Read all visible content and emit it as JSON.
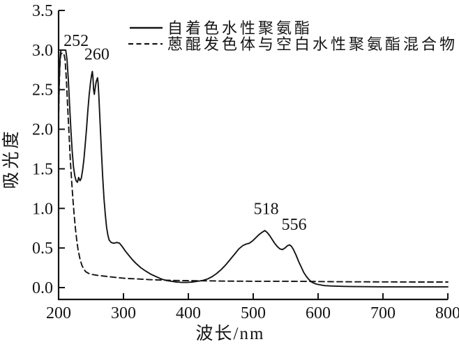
{
  "figure": {
    "background": "#ffffff",
    "ink": "#141414"
  },
  "x_axis": {
    "title": "波长/nm",
    "tick_labels": [
      "200",
      "300",
      "400",
      "500",
      "600",
      "700",
      "800"
    ],
    "tick_values": [
      200,
      300,
      400,
      500,
      600,
      700,
      800
    ],
    "min": 200,
    "max": 800
  },
  "y_axis": {
    "title": "吸光度",
    "tick_labels": [
      "0.0",
      "0.5",
      "1.0",
      "1.5",
      "2.0",
      "2.5",
      "3.0",
      "3.5"
    ],
    "tick_values": [
      0,
      0.5,
      1,
      1.5,
      2,
      2.5,
      3,
      3.5
    ],
    "min": 0.0,
    "max": 3.5
  },
  "legend": {
    "items": [
      {
        "label": "自着色水性聚氨酯",
        "line_style": "solid"
      },
      {
        "label": "蒽醌发色体与空白水性聚氨酯混合物",
        "line_style": "dashed"
      }
    ]
  },
  "annotations": [
    {
      "text": "252",
      "peak_nm": 252,
      "peak_abs": 2.73,
      "label_nm": 227,
      "label_abs": 3.12
    },
    {
      "text": "260",
      "peak_nm": 260,
      "peak_abs": 2.65,
      "label_nm": 259,
      "label_abs": 2.95
    },
    {
      "text": "518",
      "peak_nm": 518,
      "peak_abs": 0.72,
      "label_nm": 520,
      "label_abs": 1.0
    },
    {
      "text": "556",
      "peak_nm": 556,
      "peak_abs": 0.54,
      "label_nm": 563,
      "label_abs": 0.8
    }
  ],
  "chart_data": {
    "type": "line",
    "title": "",
    "xlabel": "波长/nm",
    "ylabel": "吸光度",
    "xlim": [
      200,
      800
    ],
    "ylim": [
      0,
      3.5
    ],
    "grid": false,
    "legend_position": "top-center",
    "peaks_nm": [
      252,
      260,
      518,
      556
    ],
    "series": [
      {
        "name": "自着色水性聚氨酯",
        "style": "solid",
        "color": "#141414",
        "points": [
          [
            200,
            2.2
          ],
          [
            201,
            2.62
          ],
          [
            202,
            2.86
          ],
          [
            203,
            2.97
          ],
          [
            204,
            3.0
          ],
          [
            211,
            3.0
          ],
          [
            213,
            2.88
          ],
          [
            215,
            2.62
          ],
          [
            217,
            2.3
          ],
          [
            219,
            1.98
          ],
          [
            221,
            1.72
          ],
          [
            223,
            1.52
          ],
          [
            225,
            1.41
          ],
          [
            227,
            1.35
          ],
          [
            229,
            1.33
          ],
          [
            231,
            1.39
          ],
          [
            233,
            1.35
          ],
          [
            235,
            1.38
          ],
          [
            237,
            1.48
          ],
          [
            239,
            1.62
          ],
          [
            241,
            1.8
          ],
          [
            243,
            2.0
          ],
          [
            245,
            2.22
          ],
          [
            247,
            2.42
          ],
          [
            249,
            2.58
          ],
          [
            251,
            2.69
          ],
          [
            252,
            2.73
          ],
          [
            253,
            2.65
          ],
          [
            254,
            2.5
          ],
          [
            255,
            2.44
          ],
          [
            256,
            2.5
          ],
          [
            258,
            2.6
          ],
          [
            260,
            2.65
          ],
          [
            261,
            2.58
          ],
          [
            262,
            2.42
          ],
          [
            264,
            2.08
          ],
          [
            266,
            1.72
          ],
          [
            268,
            1.4
          ],
          [
            270,
            1.12
          ],
          [
            272,
            0.92
          ],
          [
            274,
            0.76
          ],
          [
            276,
            0.66
          ],
          [
            278,
            0.6
          ],
          [
            281,
            0.57
          ],
          [
            285,
            0.56
          ],
          [
            290,
            0.57
          ],
          [
            294,
            0.56
          ],
          [
            298,
            0.52
          ],
          [
            303,
            0.46
          ],
          [
            308,
            0.41
          ],
          [
            314,
            0.35
          ],
          [
            320,
            0.3
          ],
          [
            327,
            0.25
          ],
          [
            334,
            0.21
          ],
          [
            342,
            0.17
          ],
          [
            350,
            0.14
          ],
          [
            358,
            0.11
          ],
          [
            366,
            0.09
          ],
          [
            374,
            0.08
          ],
          [
            382,
            0.07
          ],
          [
            390,
            0.065
          ],
          [
            398,
            0.065
          ],
          [
            406,
            0.07
          ],
          [
            414,
            0.08
          ],
          [
            422,
            0.09
          ],
          [
            430,
            0.11
          ],
          [
            437,
            0.14
          ],
          [
            444,
            0.18
          ],
          [
            451,
            0.23
          ],
          [
            458,
            0.29
          ],
          [
            465,
            0.36
          ],
          [
            472,
            0.43
          ],
          [
            478,
            0.49
          ],
          [
            484,
            0.53
          ],
          [
            489,
            0.55
          ],
          [
            494,
            0.56
          ],
          [
            499,
            0.59
          ],
          [
            504,
            0.63
          ],
          [
            509,
            0.67
          ],
          [
            514,
            0.7
          ],
          [
            518,
            0.72
          ],
          [
            521,
            0.7
          ],
          [
            525,
            0.66
          ],
          [
            529,
            0.61
          ],
          [
            533,
            0.56
          ],
          [
            537,
            0.52
          ],
          [
            541,
            0.49
          ],
          [
            545,
            0.48
          ],
          [
            549,
            0.5
          ],
          [
            553,
            0.53
          ],
          [
            556,
            0.54
          ],
          [
            559,
            0.52
          ],
          [
            562,
            0.48
          ],
          [
            566,
            0.41
          ],
          [
            570,
            0.33
          ],
          [
            574,
            0.26
          ],
          [
            578,
            0.19
          ],
          [
            582,
            0.14
          ],
          [
            586,
            0.1
          ],
          [
            590,
            0.07
          ],
          [
            595,
            0.05
          ],
          [
            600,
            0.04
          ],
          [
            610,
            0.025
          ],
          [
            620,
            0.02
          ],
          [
            640,
            0.015
          ],
          [
            660,
            0.012
          ],
          [
            700,
            0.01
          ],
          [
            750,
            0.01
          ],
          [
            800,
            0.01
          ]
        ]
      },
      {
        "name": "蒽醌发色体与空白水性聚氨酯混合物",
        "style": "dashed",
        "color": "#141414",
        "points": [
          [
            200,
            2.1
          ],
          [
            201,
            2.55
          ],
          [
            202,
            2.8
          ],
          [
            203,
            2.92
          ],
          [
            204,
            2.96
          ],
          [
            208,
            2.96
          ],
          [
            210,
            2.88
          ],
          [
            212,
            2.62
          ],
          [
            214,
            2.28
          ],
          [
            216,
            1.95
          ],
          [
            218,
            1.63
          ],
          [
            220,
            1.36
          ],
          [
            222,
            1.12
          ],
          [
            224,
            0.92
          ],
          [
            226,
            0.74
          ],
          [
            228,
            0.6
          ],
          [
            230,
            0.48
          ],
          [
            233,
            0.36
          ],
          [
            236,
            0.28
          ],
          [
            239,
            0.23
          ],
          [
            242,
            0.2
          ],
          [
            246,
            0.18
          ],
          [
            252,
            0.165
          ],
          [
            260,
            0.155
          ],
          [
            270,
            0.145
          ],
          [
            280,
            0.135
          ],
          [
            292,
            0.125
          ],
          [
            305,
            0.115
          ],
          [
            320,
            0.11
          ],
          [
            340,
            0.1
          ],
          [
            360,
            0.095
          ],
          [
            380,
            0.09
          ],
          [
            400,
            0.088
          ],
          [
            430,
            0.085
          ],
          [
            460,
            0.082
          ],
          [
            500,
            0.08
          ],
          [
            540,
            0.08
          ],
          [
            580,
            0.078
          ],
          [
            620,
            0.075
          ],
          [
            660,
            0.073
          ],
          [
            700,
            0.072
          ],
          [
            750,
            0.07
          ],
          [
            800,
            0.07
          ]
        ]
      }
    ]
  }
}
